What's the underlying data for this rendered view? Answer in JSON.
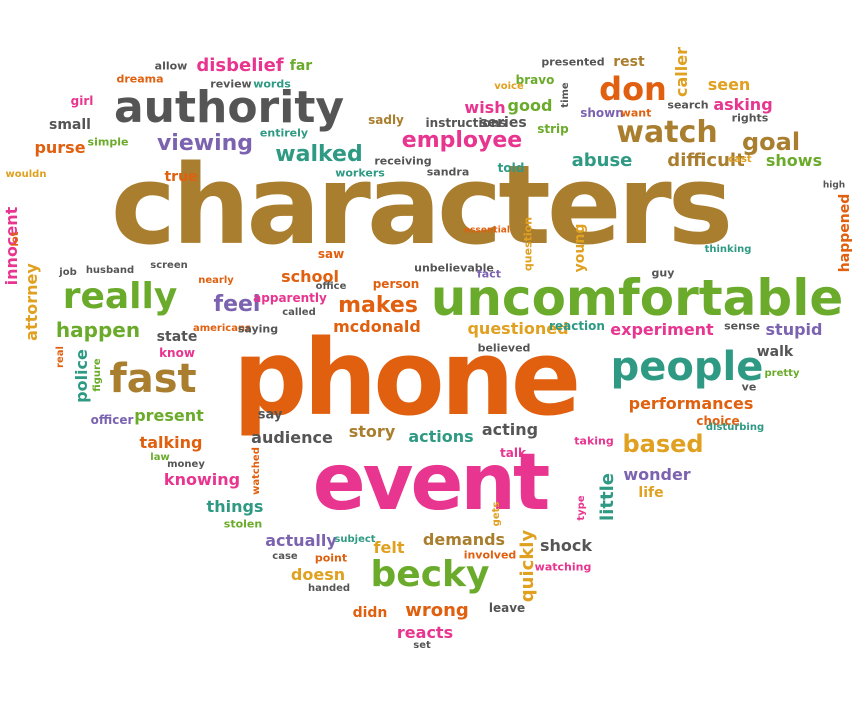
{
  "words": [
    {
      "text": "characters",
      "color": "#a97e2e"
    },
    {
      "text": "phone",
      "color": "#e0600f"
    },
    {
      "text": "event",
      "color": "#e8358f"
    },
    {
      "text": "uncomfortable",
      "color": "#6bab2b"
    },
    {
      "text": "authority",
      "color": "#555555"
    },
    {
      "text": "people",
      "color": "#2f9a84"
    },
    {
      "text": "fast",
      "color": "#a97e2e"
    },
    {
      "text": "really",
      "color": "#6bab2b"
    },
    {
      "text": "becky",
      "color": "#6bab2b"
    },
    {
      "text": "watch",
      "color": "#a97e2e"
    },
    {
      "text": "don",
      "color": "#e0600f"
    },
    {
      "text": "employee",
      "color": "#e8358f"
    },
    {
      "text": "walked",
      "color": "#2f9a84"
    },
    {
      "text": "viewing",
      "color": "#7c63b0"
    },
    {
      "text": "goal",
      "color": "#a97e2e"
    },
    {
      "text": "makes",
      "color": "#e0600f"
    },
    {
      "text": "feel",
      "color": "#7c63b0"
    },
    {
      "text": "happen",
      "color": "#6bab2b"
    },
    {
      "text": "based",
      "color": "#e0a020"
    },
    {
      "text": "wrong",
      "color": "#e0600f"
    },
    {
      "text": "disbelief",
      "color": "#e8358f"
    },
    {
      "text": "far",
      "color": "#6bab2b"
    },
    {
      "text": "mcdonald",
      "color": "#e0600f"
    },
    {
      "text": "questioned",
      "color": "#e0a020"
    },
    {
      "text": "experiment",
      "color": "#e8358f"
    },
    {
      "text": "stupid",
      "color": "#7c63b0"
    },
    {
      "text": "abuse",
      "color": "#2f9a84"
    },
    {
      "text": "difficult",
      "color": "#a97e2e"
    },
    {
      "text": "shows",
      "color": "#6bab2b"
    },
    {
      "text": "seen",
      "color": "#e0a020"
    },
    {
      "text": "asking",
      "color": "#e8358f"
    },
    {
      "text": "rest",
      "color": "#a97e2e"
    },
    {
      "text": "wish",
      "color": "#e8358f"
    },
    {
      "text": "good",
      "color": "#6bab2b"
    },
    {
      "text": "performances",
      "color": "#e0600f"
    },
    {
      "text": "present",
      "color": "#6bab2b"
    },
    {
      "text": "audience",
      "color": "#555555"
    },
    {
      "text": "story",
      "color": "#a97e2e"
    },
    {
      "text": "actions",
      "color": "#2f9a84"
    },
    {
      "text": "acting",
      "color": "#555555"
    },
    {
      "text": "talking",
      "color": "#e0600f"
    },
    {
      "text": "knowing",
      "color": "#e8358f"
    },
    {
      "text": "things",
      "color": "#2f9a84"
    },
    {
      "text": "actually",
      "color": "#7c63b0"
    },
    {
      "text": "felt",
      "color": "#e0a020"
    },
    {
      "text": "demands",
      "color": "#a97e2e"
    },
    {
      "text": "shock",
      "color": "#555555"
    },
    {
      "text": "reacts",
      "color": "#e8358f"
    },
    {
      "text": "didn",
      "color": "#e0600f"
    },
    {
      "text": "doesn",
      "color": "#e0a020"
    },
    {
      "text": "school",
      "color": "#e0600f"
    },
    {
      "text": "wonder",
      "color": "#7c63b0"
    },
    {
      "text": "life",
      "color": "#e0a020"
    },
    {
      "text": "purse",
      "color": "#e0600f"
    },
    {
      "text": "true",
      "color": "#e0600f"
    },
    {
      "text": "small",
      "color": "#555555"
    },
    {
      "text": "girl",
      "color": "#e8358f"
    },
    {
      "text": "allow",
      "color": "#555555"
    },
    {
      "text": "review",
      "color": "#555555"
    },
    {
      "text": "words",
      "color": "#2f9a84"
    },
    {
      "text": "dreama",
      "color": "#e0600f"
    },
    {
      "text": "sadly",
      "color": "#a97e2e"
    },
    {
      "text": "simple",
      "color": "#6bab2b"
    },
    {
      "text": "entirely",
      "color": "#2f9a84"
    },
    {
      "text": "receiving",
      "color": "#555555"
    },
    {
      "text": "workers",
      "color": "#2f9a84"
    },
    {
      "text": "sandra",
      "color": "#555555"
    },
    {
      "text": "told",
      "color": "#2f9a84"
    },
    {
      "text": "series",
      "color": "#555555"
    },
    {
      "text": "instructions",
      "color": "#555555"
    },
    {
      "text": "strip",
      "color": "#6bab2b"
    },
    {
      "text": "bravo",
      "color": "#6bab2b"
    },
    {
      "text": "voice",
      "color": "#e0a020"
    },
    {
      "text": "presented",
      "color": "#555555"
    },
    {
      "text": "shown",
      "color": "#7c63b0"
    },
    {
      "text": "want",
      "color": "#e0600f"
    },
    {
      "text": "search",
      "color": "#555555"
    },
    {
      "text": "rights",
      "color": "#555555"
    },
    {
      "text": "cast",
      "color": "#e0a020"
    },
    {
      "text": "wouldn",
      "color": "#e0a020"
    },
    {
      "text": "saw",
      "color": "#e0600f"
    },
    {
      "text": "office",
      "color": "#555555"
    },
    {
      "text": "person",
      "color": "#e0600f"
    },
    {
      "text": "unbelievable",
      "color": "#555555"
    },
    {
      "text": "fact",
      "color": "#7c63b0"
    },
    {
      "text": "essential",
      "color": "#e0600f"
    },
    {
      "text": "guy",
      "color": "#555555"
    },
    {
      "text": "thinking",
      "color": "#2f9a84"
    },
    {
      "text": "high",
      "color": "#555555"
    },
    {
      "text": "job",
      "color": "#555555"
    },
    {
      "text": "husband",
      "color": "#555555"
    },
    {
      "text": "screen",
      "color": "#555555"
    },
    {
      "text": "nearly",
      "color": "#e0600f"
    },
    {
      "text": "apparently",
      "color": "#e8358f"
    },
    {
      "text": "called",
      "color": "#555555"
    },
    {
      "text": "americans",
      "color": "#e0600f"
    },
    {
      "text": "saying",
      "color": "#555555"
    },
    {
      "text": "state",
      "color": "#555555"
    },
    {
      "text": "know",
      "color": "#e8358f"
    },
    {
      "text": "reaction",
      "color": "#2f9a84"
    },
    {
      "text": "believed",
      "color": "#555555"
    },
    {
      "text": "sense",
      "color": "#555555"
    },
    {
      "text": "walk",
      "color": "#555555"
    },
    {
      "text": "pretty",
      "color": "#6bab2b"
    },
    {
      "text": "ve",
      "color": "#555555"
    },
    {
      "text": "choice",
      "color": "#e0600f"
    },
    {
      "text": "disturbing",
      "color": "#2f9a84"
    },
    {
      "text": "say",
      "color": "#555555"
    },
    {
      "text": "officer",
      "color": "#7c63b0"
    },
    {
      "text": "law",
      "color": "#6bab2b"
    },
    {
      "text": "money",
      "color": "#555555"
    },
    {
      "text": "talk",
      "color": "#e8358f"
    },
    {
      "text": "taking",
      "color": "#e8358f"
    },
    {
      "text": "stolen",
      "color": "#6bab2b"
    },
    {
      "text": "subject",
      "color": "#2f9a84"
    },
    {
      "text": "case",
      "color": "#555555"
    },
    {
      "text": "point",
      "color": "#e0600f"
    },
    {
      "text": "handed",
      "color": "#555555"
    },
    {
      "text": "involved",
      "color": "#e0600f"
    },
    {
      "text": "watching",
      "color": "#e8358f"
    },
    {
      "text": "leave",
      "color": "#555555"
    },
    {
      "text": "set",
      "color": "#555555"
    },
    {
      "text": "caller",
      "color": "#e0a020"
    },
    {
      "text": "time",
      "color": "#555555"
    },
    {
      "text": "young",
      "color": "#e0a020"
    },
    {
      "text": "question",
      "color": "#e0a020"
    },
    {
      "text": "happened",
      "color": "#e0600f"
    },
    {
      "text": "innocent",
      "color": "#e8358f"
    },
    {
      "text": "lot",
      "color": "#e0600f"
    },
    {
      "text": "attorney",
      "color": "#e0a020"
    },
    {
      "text": "police",
      "color": "#2f9a84"
    },
    {
      "text": "real",
      "color": "#e0600f"
    },
    {
      "text": "figure",
      "color": "#6bab2b"
    },
    {
      "text": "watched",
      "color": "#e0600f"
    },
    {
      "text": "quickly",
      "color": "#e0a020"
    },
    {
      "text": "gets",
      "color": "#e0a020"
    },
    {
      "text": "little",
      "color": "#2f9a84"
    },
    {
      "text": "type",
      "color": "#e8358f"
    },
    {
      "text": "brought",
      "color": "#e8358f"
    }
  ]
}
